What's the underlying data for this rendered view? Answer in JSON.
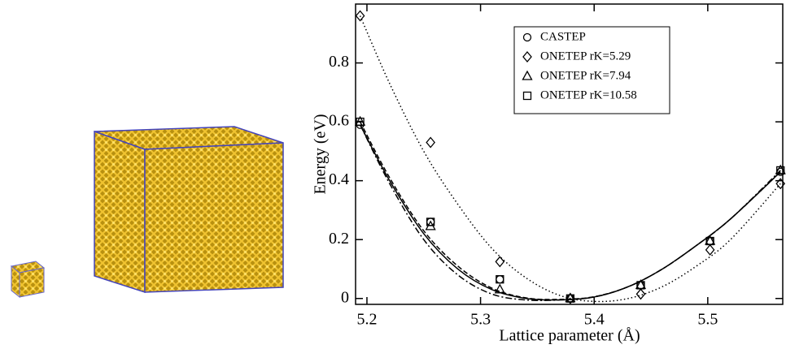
{
  "chart_data": {
    "type": "scatter",
    "xlabel": "Lattice parameter (Å)",
    "ylabel": "Energy (eV)",
    "xlim": [
      5.19,
      5.566
    ],
    "ylim": [
      -0.02,
      1.0
    ],
    "xticks": [
      5.2,
      5.3,
      5.4,
      5.5
    ],
    "yticks": [
      0,
      0.2,
      0.4,
      0.6,
      0.8
    ],
    "x": [
      5.194,
      5.256,
      5.317,
      5.379,
      5.441,
      5.502,
      5.564
    ],
    "fit_x": [
      5.194,
      5.22,
      5.25,
      5.28,
      5.31,
      5.34,
      5.37,
      5.4,
      5.43,
      5.46,
      5.49,
      5.52,
      5.564
    ],
    "series": [
      {
        "name": "CASTEP",
        "marker": "circle",
        "color": "#000000",
        "dash": "none",
        "values": [
          0.59,
          0.26,
          0.065,
          0,
          0.045,
          0.195,
          0.43
        ],
        "fit": [
          0.59,
          0.4,
          0.22,
          0.1,
          0.03,
          0.0,
          -0.005,
          0.005,
          0.04,
          0.1,
          0.18,
          0.27,
          0.43
        ]
      },
      {
        "name": "ONETEP rK=5.29",
        "marker": "diamond",
        "color": "#000000",
        "dash": "1.5,3",
        "values": [
          0.96,
          0.53,
          0.125,
          0,
          0.015,
          0.165,
          0.39
        ],
        "fit": [
          0.96,
          0.73,
          0.5,
          0.32,
          0.17,
          0.07,
          0.01,
          -0.01,
          0.0,
          0.04,
          0.11,
          0.2,
          0.39
        ]
      },
      {
        "name": "ONETEP rK=7.94",
        "marker": "triangle",
        "color": "#000000",
        "dash": "8,3,2,3",
        "values": [
          0.6,
          0.245,
          0.03,
          0,
          0.045,
          0.195,
          0.435
        ],
        "fit": [
          0.59,
          0.39,
          0.2,
          0.08,
          0.015,
          -0.005,
          -0.005,
          0.005,
          0.04,
          0.1,
          0.18,
          0.27,
          0.435
        ]
      },
      {
        "name": "ONETEP rK=10.58",
        "marker": "square",
        "color": "#000000",
        "dash": "6,3",
        "values": [
          0.6,
          0.26,
          0.065,
          0,
          0.045,
          0.195,
          0.435
        ],
        "fit": [
          0.6,
          0.41,
          0.23,
          0.11,
          0.035,
          0.002,
          -0.003,
          0.006,
          0.04,
          0.1,
          0.18,
          0.27,
          0.43
        ]
      }
    ]
  }
}
